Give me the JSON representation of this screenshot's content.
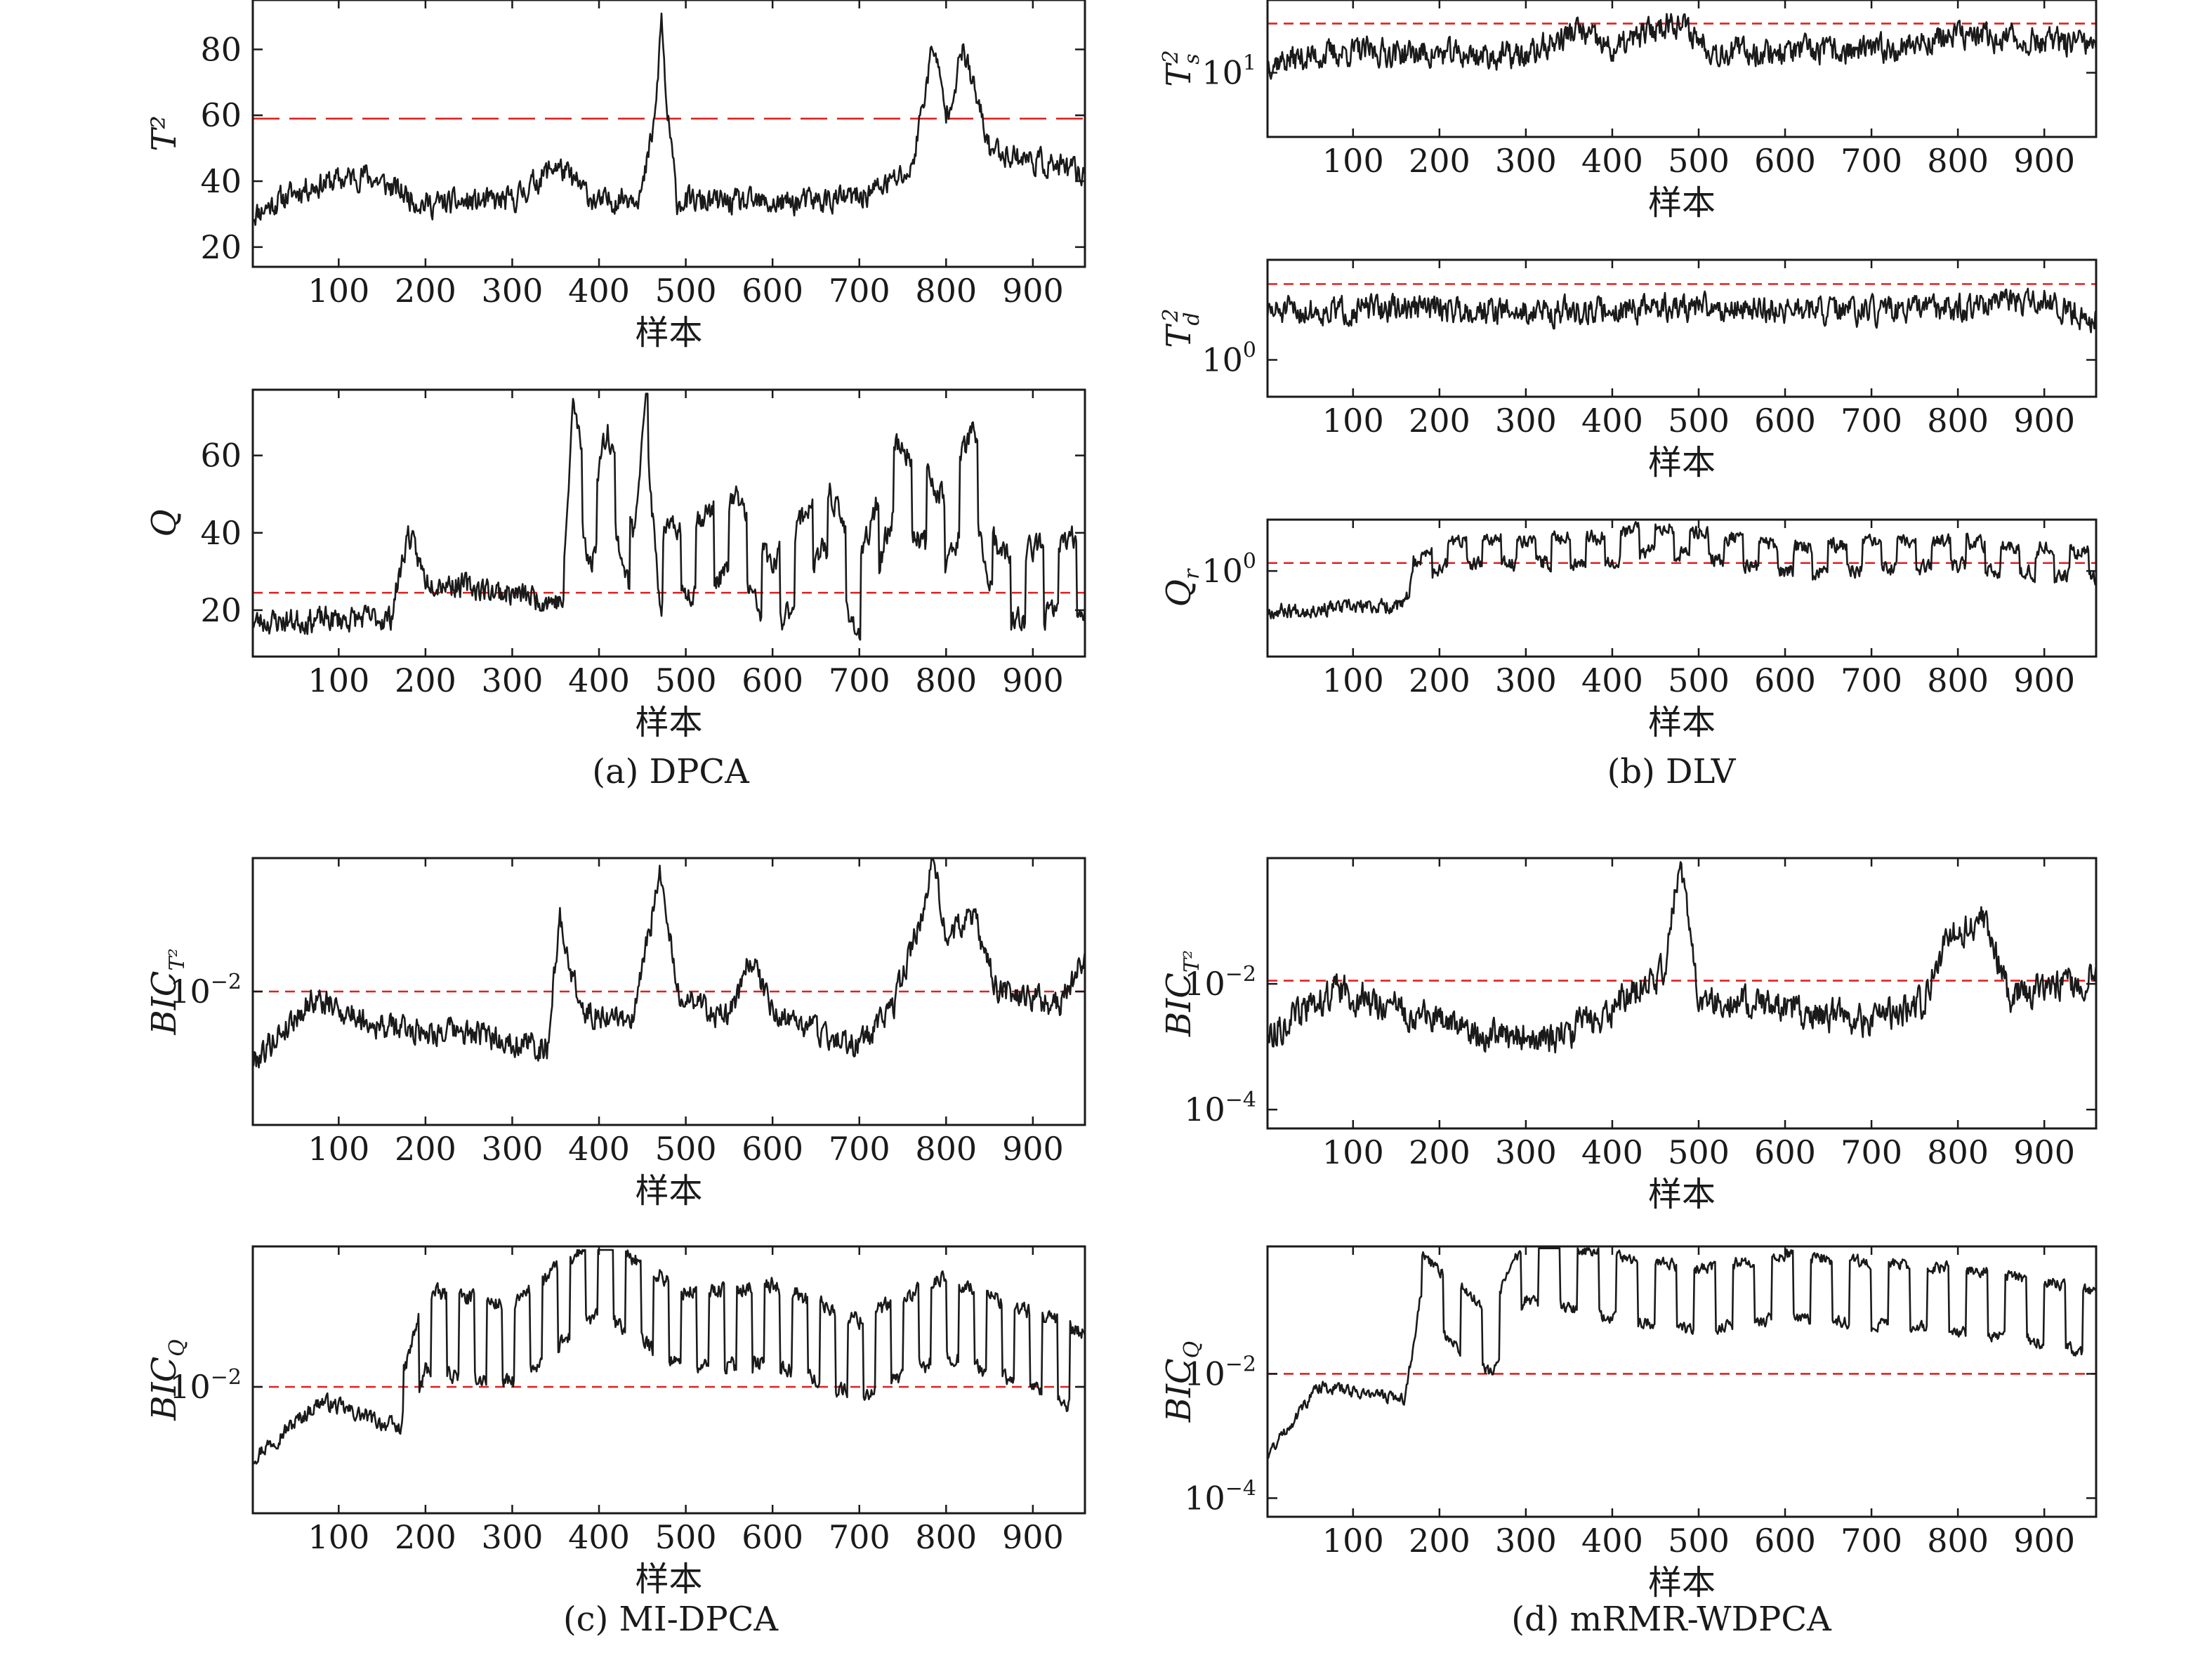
{
  "colors": {
    "series": "#1a1a1a",
    "threshold": "#e02020",
    "background": "#ffffff"
  },
  "captions": [
    {
      "id": "a",
      "text": "(a) DPCA"
    },
    {
      "id": "b",
      "text": "(b) DLV"
    },
    {
      "id": "c",
      "text": "(c) MI-DPCA"
    },
    {
      "id": "d",
      "text": "(d) mRMR-WDPCA"
    }
  ],
  "chart_data": [
    {
      "type": "line",
      "panel": "a",
      "ylabel": "T²",
      "xlabel": "样本",
      "yscale": "linear",
      "xlim": [
        1,
        960
      ],
      "ylim": [
        14,
        95
      ],
      "xticks": [
        100,
        200,
        300,
        400,
        500,
        600,
        700,
        800,
        900
      ],
      "yticks": [
        20,
        40,
        60,
        80
      ],
      "threshold": 59,
      "threshold_style": "long-dash",
      "series": [
        {
          "seed": 11,
          "knots": [
            [
              1,
              30
            ],
            [
              60,
              38
            ],
            [
              130,
              42
            ],
            [
              200,
              33
            ],
            [
              300,
              34
            ],
            [
              350,
              45
            ],
            [
              400,
              33
            ],
            [
              450,
              37
            ],
            [
              465,
              60
            ],
            [
              472,
              90
            ],
            [
              478,
              62
            ],
            [
              490,
              34
            ],
            [
              600,
              33
            ],
            [
              700,
              35
            ],
            [
              760,
              43
            ],
            [
              785,
              82
            ],
            [
              800,
              60
            ],
            [
              820,
              80
            ],
            [
              850,
              50
            ],
            [
              960,
              42
            ]
          ],
          "noise": 6,
          "min": 14,
          "max": 94
        }
      ]
    },
    {
      "type": "line",
      "panel": "a",
      "ylabel": "Q",
      "xlabel": "样本",
      "yscale": "linear",
      "xlim": [
        1,
        960
      ],
      "ylim": [
        8,
        77
      ],
      "xticks": [
        100,
        200,
        300,
        400,
        500,
        600,
        700,
        800,
        900
      ],
      "yticks": [
        20,
        40,
        60
      ],
      "threshold": 24.5,
      "series": [
        {
          "seed": 23,
          "knots": [
            [
              1,
              17
            ],
            [
              160,
              18
            ],
            [
              180,
              40
            ],
            [
              200,
              28
            ],
            [
              280,
              25
            ],
            [
              360,
              22
            ],
            [
              370,
              65
            ],
            [
              390,
              40
            ],
            [
              410,
              58
            ],
            [
              440,
              30
            ],
            [
              455,
              72
            ],
            [
              470,
              30
            ],
            [
              560,
              40
            ],
            [
              600,
              22
            ],
            [
              660,
              45
            ],
            [
              700,
              22
            ],
            [
              740,
              55
            ],
            [
              800,
              40
            ],
            [
              830,
              58
            ],
            [
              860,
              25
            ],
            [
              960,
              30
            ]
          ],
          "noise": 5,
          "min": 9,
          "max": 76,
          "pulse": {
            "from": 360,
            "amp": 18,
            "period": 38
          }
        }
      ]
    },
    {
      "type": "line",
      "panel": "b",
      "ylabel": "T",
      "ylabel_sup": "2",
      "ylabel_sub": "s",
      "xlabel": "样本",
      "yscale": "log",
      "xlim": [
        1,
        960
      ],
      "ylim_log10": [
        0.4,
        1.68
      ],
      "xticks": [
        100,
        200,
        300,
        400,
        500,
        600,
        700,
        800,
        900
      ],
      "yticks": [
        {
          "log10": 1,
          "base": "10",
          "exp": "1"
        }
      ],
      "threshold_log10": 1.46,
      "series": [
        {
          "seed": 37,
          "knots": [
            [
              1,
              1.1
            ],
            [
              100,
              1.2
            ],
            [
              300,
              1.15
            ],
            [
              360,
              1.4
            ],
            [
              400,
              1.2
            ],
            [
              470,
              1.5
            ],
            [
              520,
              1.2
            ],
            [
              700,
              1.2
            ],
            [
              800,
              1.35
            ],
            [
              960,
              1.25
            ]
          ],
          "noise": 0.2,
          "min": 0.42,
          "max": 1.67
        }
      ]
    },
    {
      "type": "line",
      "panel": "b",
      "ylabel": "T",
      "ylabel_sup": "2",
      "ylabel_sub": "d",
      "xlabel": "样本",
      "yscale": "log",
      "xlim": [
        1,
        960
      ],
      "ylim_log10": [
        -0.35,
        0.95
      ],
      "xticks": [
        100,
        200,
        300,
        400,
        500,
        600,
        700,
        800,
        900
      ],
      "yticks": [
        {
          "log10": 0,
          "base": "10",
          "exp": "0"
        }
      ],
      "threshold_log10": 0.72,
      "series": [
        {
          "seed": 51,
          "knots": [
            [
              1,
              0.45
            ],
            [
              200,
              0.5
            ],
            [
              300,
              0.45
            ],
            [
              500,
              0.5
            ],
            [
              700,
              0.45
            ],
            [
              900,
              0.55
            ],
            [
              960,
              0.4
            ]
          ],
          "noise": 0.2,
          "min": -0.33,
          "max": 0.93
        }
      ]
    },
    {
      "type": "line",
      "panel": "b",
      "ylabel": "Q",
      "ylabel_sub": "r",
      "xlabel": "样本",
      "yscale": "log",
      "xlim": [
        1,
        960
      ],
      "ylim_log10": [
        -0.75,
        0.45
      ],
      "xticks": [
        100,
        200,
        300,
        400,
        500,
        600,
        700,
        800,
        900
      ],
      "yticks": [
        {
          "log10": 0,
          "base": "10",
          "exp": "0"
        }
      ],
      "threshold_log10": 0.07,
      "series": [
        {
          "seed": 67,
          "knots": [
            [
              1,
              -0.35
            ],
            [
              160,
              -0.3
            ],
            [
              170,
              -0.05
            ],
            [
              200,
              0.15
            ],
            [
              400,
              0.2
            ],
            [
              450,
              0.3
            ],
            [
              600,
              0.1
            ],
            [
              800,
              0.15
            ],
            [
              960,
              0.05
            ]
          ],
          "noise": 0.1,
          "min": -0.72,
          "max": 0.43,
          "pulse": {
            "from": 170,
            "amp": 0.22,
            "period": 40
          }
        }
      ]
    },
    {
      "type": "line",
      "panel": "c",
      "ylabel": "BIC",
      "ylabel_sub": "T²",
      "xlabel": "样本",
      "yscale": "log",
      "xlim": [
        1,
        960
      ],
      "ylim_log10": [
        -3.9,
        -0.1
      ],
      "xticks": [
        100,
        200,
        300,
        400,
        500,
        600,
        700,
        800,
        900
      ],
      "yticks": [
        {
          "log10": -2,
          "base": "10",
          "exp": "−2"
        }
      ],
      "threshold_log10": -2.0,
      "series": [
        {
          "seed": 79,
          "knots": [
            [
              1,
              -3.0
            ],
            [
              70,
              -2.1
            ],
            [
              150,
              -2.5
            ],
            [
              250,
              -2.6
            ],
            [
              340,
              -2.8
            ],
            [
              355,
              -1.0
            ],
            [
              380,
              -2.3
            ],
            [
              440,
              -2.4
            ],
            [
              470,
              -0.3
            ],
            [
              490,
              -2.0
            ],
            [
              550,
              -2.4
            ],
            [
              575,
              -1.5
            ],
            [
              600,
              -2.3
            ],
            [
              700,
              -2.8
            ],
            [
              740,
              -2.2
            ],
            [
              770,
              -1.0
            ],
            [
              785,
              -0.05
            ],
            [
              800,
              -1.2
            ],
            [
              830,
              -0.9
            ],
            [
              860,
              -2.0
            ],
            [
              930,
              -2.2
            ],
            [
              960,
              -1.5
            ]
          ],
          "noise": 0.3,
          "min": -3.88,
          "max": -0.12
        }
      ]
    },
    {
      "type": "line",
      "panel": "c",
      "ylabel": "BIC",
      "ylabel_sub": "Q",
      "xlabel": "样本",
      "yscale": "log",
      "xlim": [
        1,
        960
      ],
      "ylim_log10": [
        -3.8,
        0.0
      ],
      "xticks": [
        100,
        200,
        300,
        400,
        500,
        600,
        700,
        800,
        900
      ],
      "yticks": [
        {
          "log10": -2,
          "base": "10",
          "exp": "−2"
        }
      ],
      "threshold_log10": -2.0,
      "series": [
        {
          "seed": 97,
          "knots": [
            [
              1,
              -3.0
            ],
            [
              80,
              -2.2
            ],
            [
              170,
              -2.6
            ],
            [
              200,
              -1.2
            ],
            [
              300,
              -1.4
            ],
            [
              400,
              -0.4
            ],
            [
              500,
              -1.2
            ],
            [
              600,
              -1.1
            ],
            [
              700,
              -1.6
            ],
            [
              800,
              -1.0
            ],
            [
              960,
              -1.8
            ]
          ],
          "noise": 0.18,
          "min": -3.78,
          "max": -0.05,
          "pulse": {
            "from": 175,
            "amp": 1.1,
            "period": 32
          }
        }
      ]
    },
    {
      "type": "line",
      "panel": "d",
      "ylabel": "BIC",
      "ylabel_sub": "T²",
      "xlabel": "样本",
      "yscale": "log",
      "xlim": [
        1,
        960
      ],
      "ylim_log10": [
        -4.3,
        0.0
      ],
      "xticks": [
        100,
        200,
        300,
        400,
        500,
        600,
        700,
        800,
        900
      ],
      "yticks": [
        {
          "log10": -2,
          "base": "10",
          "exp": "−2"
        },
        {
          "log10": -4,
          "base": "10",
          "exp": "−4"
        }
      ],
      "threshold_log10": -1.95,
      "series": [
        {
          "seed": 113,
          "knots": [
            [
              1,
              -2.8
            ],
            [
              80,
              -2.1
            ],
            [
              150,
              -2.4
            ],
            [
              250,
              -2.8
            ],
            [
              330,
              -2.9
            ],
            [
              400,
              -2.4
            ],
            [
              460,
              -1.8
            ],
            [
              478,
              -0.05
            ],
            [
              500,
              -2.2
            ],
            [
              700,
              -2.6
            ],
            [
              760,
              -2.3
            ],
            [
              790,
              -1.2
            ],
            [
              830,
              -1.0
            ],
            [
              860,
              -2.2
            ],
            [
              960,
              -1.9
            ]
          ],
          "noise": 0.4,
          "min": -4.28,
          "max": -0.03
        }
      ]
    },
    {
      "type": "line",
      "panel": "d",
      "ylabel": "BIC",
      "ylabel_sub": "Q",
      "xlabel": "样本",
      "yscale": "log",
      "xlim": [
        1,
        960
      ],
      "ylim_log10": [
        -4.3,
        0.05
      ],
      "xticks": [
        100,
        200,
        300,
        400,
        500,
        600,
        700,
        800,
        900
      ],
      "yticks": [
        {
          "log10": -2,
          "base": "10",
          "exp": "−2"
        },
        {
          "log10": -4,
          "base": "10",
          "exp": "−4"
        }
      ],
      "threshold_log10": -2.0,
      "series": [
        {
          "seed": 131,
          "knots": [
            [
              1,
              -3.3
            ],
            [
              60,
              -2.2
            ],
            [
              160,
              -2.4
            ],
            [
              180,
              -0.6
            ],
            [
              260,
              -1.5
            ],
            [
              300,
              -0.3
            ],
            [
              400,
              -0.6
            ],
            [
              500,
              -0.8
            ],
            [
              600,
              -0.6
            ],
            [
              700,
              -0.7
            ],
            [
              800,
              -0.8
            ],
            [
              900,
              -1.0
            ],
            [
              960,
              -1.2
            ]
          ],
          "noise": 0.15,
          "min": -4.28,
          "max": 0.02,
          "pulse": {
            "from": 180,
            "amp": 1.0,
            "period": 45
          }
        }
      ]
    }
  ]
}
